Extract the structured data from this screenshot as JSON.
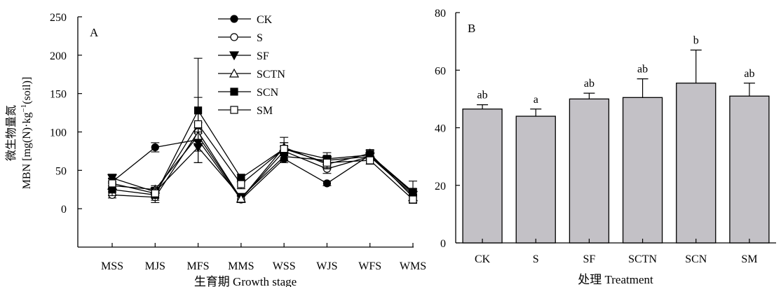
{
  "chart_data": [
    {
      "type": "line",
      "panel_label": "A",
      "xlabel": "生育期 Growth stage",
      "ylabel_line1": "微生物量氮",
      "ylabel_line2_prefix": "MBN [mg(N)·kg",
      "ylabel_line2_sup": "−1",
      "ylabel_line2_suffix": "(soil)]",
      "ylim": [
        -50,
        250
      ],
      "yticks": [
        "0",
        "50",
        "100",
        "150",
        "200",
        "250"
      ],
      "categories": [
        "MSS",
        "MJS",
        "MFS",
        "MMS",
        "WSS",
        "WJS",
        "WFS",
        "WMS"
      ],
      "legend_position": "top-right",
      "series": [
        {
          "name": "CK",
          "marker": "filled-circle",
          "values": [
            35,
            80,
            90,
            12,
            65,
            33,
            70,
            20
          ],
          "errors": [
            5,
            6,
            8,
            4,
            5,
            3,
            5,
            4
          ]
        },
        {
          "name": "S",
          "marker": "open-circle",
          "values": [
            18,
            15,
            100,
            13,
            75,
            52,
            68,
            22
          ],
          "errors": [
            4,
            4,
            12,
            4,
            6,
            6,
            5,
            4
          ]
        },
        {
          "name": "SF",
          "marker": "filled-triangle-down",
          "values": [
            40,
            22,
            80,
            15,
            68,
            63,
            68,
            18
          ],
          "errors": [
            5,
            5,
            20,
            5,
            6,
            6,
            5,
            4
          ]
        },
        {
          "name": "SCTN",
          "marker": "open-triangle-up",
          "values": [
            30,
            25,
            95,
            13,
            80,
            58,
            72,
            15
          ],
          "errors": [
            5,
            5,
            10,
            4,
            6,
            6,
            5,
            4
          ]
        },
        {
          "name": "SCN",
          "marker": "filled-square",
          "values": [
            25,
            18,
            128,
            40,
            78,
            65,
            70,
            22
          ],
          "errors": [
            8,
            10,
            68,
            5,
            15,
            8,
            6,
            14
          ]
        },
        {
          "name": "SM",
          "marker": "open-square",
          "values": [
            33,
            20,
            110,
            32,
            78,
            60,
            63,
            12
          ],
          "errors": [
            6,
            6,
            35,
            6,
            8,
            8,
            5,
            5
          ]
        }
      ]
    },
    {
      "type": "bar",
      "panel_label": "B",
      "xlabel": "处理 Treatment",
      "ylabel": "",
      "ylim": [
        0,
        80
      ],
      "yticks": [
        "0",
        "20",
        "40",
        "60",
        "80"
      ],
      "categories": [
        "CK",
        "S",
        "SF",
        "SCTN",
        "SCN",
        "SM"
      ],
      "values": [
        46.5,
        44,
        50,
        50.5,
        55.5,
        51
      ],
      "errors": [
        1.5,
        2.5,
        2,
        6.5,
        11.5,
        4.5
      ],
      "significance": [
        "ab",
        "a",
        "ab",
        "ab",
        "b",
        "ab"
      ],
      "bar_color": "#c3c1c6"
    }
  ]
}
